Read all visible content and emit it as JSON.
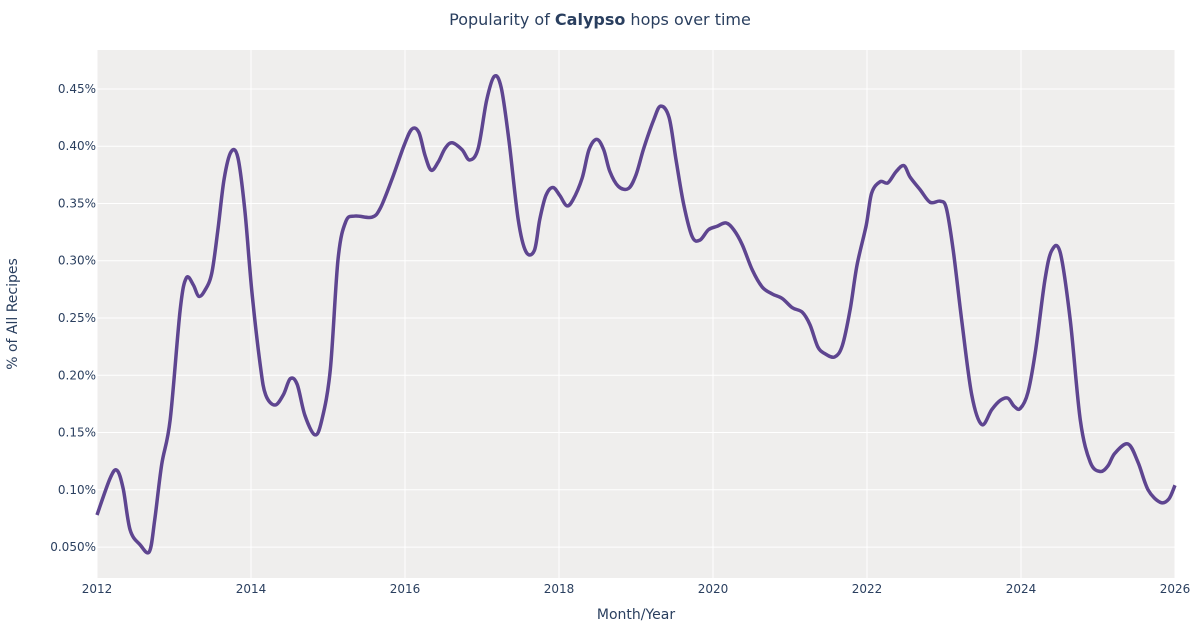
{
  "chart_data": {
    "type": "line",
    "title_prefix": "Popularity of ",
    "title_bold": "Calypso",
    "title_suffix": " hops over time",
    "xlabel": "Month/Year",
    "ylabel": "% of All Recipes",
    "xlim": [
      2012,
      2026
    ],
    "ylim": [
      0.023,
      0.484
    ],
    "x_ticks": [
      "2012",
      "2014",
      "2016",
      "2018",
      "2020",
      "2022",
      "2024",
      "2026"
    ],
    "y_ticks": [
      {
        "v": 0.05,
        "label": "0.050%"
      },
      {
        "v": 0.1,
        "label": "0.10%"
      },
      {
        "v": 0.15,
        "label": "0.15%"
      },
      {
        "v": 0.2,
        "label": "0.20%"
      },
      {
        "v": 0.25,
        "label": "0.25%"
      },
      {
        "v": 0.3,
        "label": "0.30%"
      },
      {
        "v": 0.35,
        "label": "0.35%"
      },
      {
        "v": 0.4,
        "label": "0.40%"
      },
      {
        "v": 0.45,
        "label": "0.45%"
      }
    ],
    "grid": true,
    "colors": {
      "line": "#5e4590",
      "plot_bg": "#efeeed",
      "grid": "#ffffff",
      "text": "#2a3f5f"
    },
    "series": [
      {
        "x": [
          2012.0,
          2012.17,
          2012.26,
          2012.34,
          2012.43,
          2012.56,
          2012.68,
          2012.75,
          2012.84,
          2012.95,
          2013.08,
          2013.16,
          2013.25,
          2013.32,
          2013.4,
          2013.49,
          2013.57,
          2013.65,
          2013.74,
          2013.83,
          2013.92,
          2014.01,
          2014.12,
          2014.19,
          2014.31,
          2014.42,
          2014.51,
          2014.6,
          2014.7,
          2014.83,
          2014.92,
          2015.03,
          2015.13,
          2015.23,
          2015.35,
          2015.57,
          2015.68,
          2015.83,
          2015.99,
          2016.09,
          2016.18,
          2016.26,
          2016.34,
          2016.43,
          2016.52,
          2016.61,
          2016.74,
          2016.84,
          2016.95,
          2017.06,
          2017.16,
          2017.25,
          2017.35,
          2017.47,
          2017.57,
          2017.68,
          2017.75,
          2017.83,
          2017.92,
          2018.01,
          2018.1,
          2018.18,
          2018.3,
          2018.39,
          2018.49,
          2018.58,
          2018.66,
          2018.77,
          2018.9,
          2019.0,
          2019.1,
          2019.23,
          2019.32,
          2019.43,
          2019.52,
          2019.62,
          2019.73,
          2019.83,
          2019.94,
          2020.05,
          2020.17,
          2020.27,
          2020.38,
          2020.51,
          2020.64,
          2020.77,
          2020.9,
          2021.03,
          2021.16,
          2021.26,
          2021.36,
          2021.45,
          2021.58,
          2021.68,
          2021.78,
          2021.87,
          2021.99,
          2022.06,
          2022.17,
          2022.27,
          2022.38,
          2022.48,
          2022.56,
          2022.69,
          2022.82,
          2022.95,
          2023.03,
          2023.12,
          2023.23,
          2023.36,
          2023.49,
          2023.62,
          2023.73,
          2023.83,
          2023.91,
          2023.99,
          2024.09,
          2024.19,
          2024.31,
          2024.4,
          2024.51,
          2024.64,
          2024.77,
          2024.9,
          2025.03,
          2025.13,
          2025.22,
          2025.39,
          2025.52,
          2025.65,
          2025.81,
          2025.92,
          2026.0
        ],
        "y": [
          0.078,
          0.11,
          0.117,
          0.101,
          0.065,
          0.052,
          0.046,
          0.074,
          0.122,
          0.161,
          0.257,
          0.285,
          0.279,
          0.269,
          0.274,
          0.289,
          0.327,
          0.371,
          0.395,
          0.39,
          0.344,
          0.274,
          0.209,
          0.183,
          0.174,
          0.183,
          0.197,
          0.192,
          0.165,
          0.148,
          0.161,
          0.205,
          0.301,
          0.334,
          0.339,
          0.338,
          0.346,
          0.371,
          0.401,
          0.415,
          0.412,
          0.392,
          0.379,
          0.386,
          0.398,
          0.403,
          0.397,
          0.388,
          0.398,
          0.44,
          0.461,
          0.451,
          0.405,
          0.336,
          0.308,
          0.309,
          0.336,
          0.357,
          0.364,
          0.357,
          0.348,
          0.353,
          0.372,
          0.397,
          0.406,
          0.397,
          0.378,
          0.365,
          0.363,
          0.375,
          0.398,
          0.423,
          0.435,
          0.425,
          0.388,
          0.349,
          0.321,
          0.318,
          0.327,
          0.33,
          0.333,
          0.327,
          0.314,
          0.292,
          0.277,
          0.271,
          0.267,
          0.259,
          0.255,
          0.244,
          0.225,
          0.219,
          0.216,
          0.226,
          0.257,
          0.296,
          0.331,
          0.359,
          0.369,
          0.368,
          0.378,
          0.383,
          0.373,
          0.362,
          0.351,
          0.352,
          0.346,
          0.309,
          0.248,
          0.183,
          0.157,
          0.17,
          0.178,
          0.18,
          0.173,
          0.171,
          0.185,
          0.222,
          0.283,
          0.309,
          0.307,
          0.248,
          0.161,
          0.124,
          0.116,
          0.121,
          0.132,
          0.14,
          0.124,
          0.1,
          0.089,
          0.092,
          0.104
        ]
      }
    ]
  }
}
